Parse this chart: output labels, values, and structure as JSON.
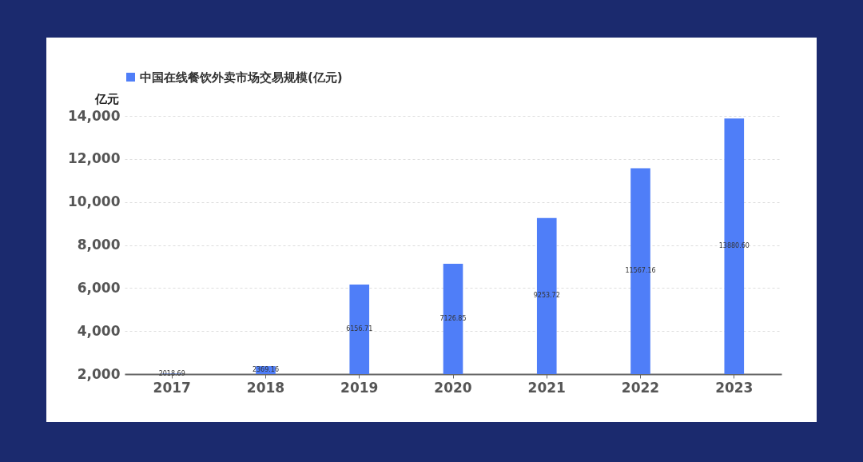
{
  "chart_data": {
    "type": "bar",
    "categories": [
      "2017",
      "2018",
      "2019",
      "2020",
      "2021",
      "2022",
      "2023"
    ],
    "series": [
      {
        "name": "中国在线餐饮外卖市场交易规模(亿元)",
        "color": "#4f7ef8",
        "values": [
          2018.69,
          2369.16,
          6156.71,
          7126.85,
          9253.72,
          11567.16,
          13880.6
        ]
      }
    ],
    "value_labels": [
      "2018.69",
      "2369.16",
      "6156.71",
      "7126.85",
      "9253.72",
      "11567.16",
      "13880.60"
    ],
    "ylabel": "亿元",
    "ylim": [
      2000,
      14000
    ],
    "yticks": [
      {
        "value": 2000,
        "label": "2,000"
      },
      {
        "value": 4000,
        "label": "4,000"
      },
      {
        "value": 6000,
        "label": "6,000"
      },
      {
        "value": 8000,
        "label": "8,000"
      },
      {
        "value": 10000,
        "label": "10,000"
      },
      {
        "value": 12000,
        "label": "12,000"
      },
      {
        "value": 14000,
        "label": "14,000"
      }
    ],
    "grid": "y",
    "legend": "top"
  }
}
